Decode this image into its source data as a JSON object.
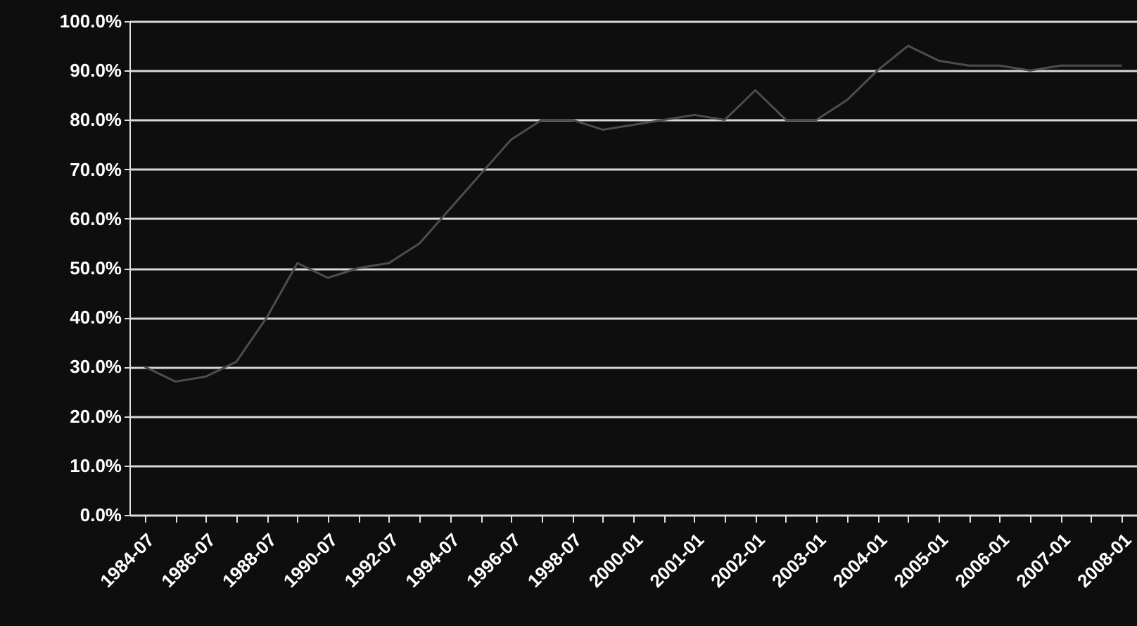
{
  "chart_data": {
    "type": "line",
    "categories": [
      "1984-07",
      null,
      "1986-07",
      null,
      "1988-07",
      null,
      "1990-07",
      null,
      "1992-07",
      null,
      "1994-07",
      null,
      "1996-07",
      null,
      "1998-07",
      null,
      "2000-01",
      null,
      "2001-01",
      null,
      "2002-01",
      null,
      "2003-01",
      null,
      "2004-01",
      null,
      "2005-01",
      null,
      "2006-01",
      null,
      "2007-01",
      null,
      "2008-01"
    ],
    "series": [
      {
        "color": "#4d4d4d",
        "values": [
          30,
          27,
          28,
          31,
          40,
          51,
          48,
          50,
          51,
          55,
          62,
          69,
          76,
          80,
          80,
          78,
          79,
          80,
          81,
          80,
          86,
          80,
          80,
          84,
          90,
          95,
          92,
          91,
          91,
          90,
          91,
          91,
          91
        ]
      }
    ],
    "ylim": [
      0,
      100
    ],
    "yticks": [
      {
        "value": 0,
        "label": "0.0%"
      },
      {
        "value": 10,
        "label": "10.0%"
      },
      {
        "value": 20,
        "label": "20.0%"
      },
      {
        "value": 30,
        "label": "30.0%"
      },
      {
        "value": 40,
        "label": "40.0%"
      },
      {
        "value": 50,
        "label": "50.0%"
      },
      {
        "value": 60,
        "label": "60.0%"
      },
      {
        "value": 70,
        "label": "70.0%"
      },
      {
        "value": 80,
        "label": "80.0%"
      },
      {
        "value": 90,
        "label": "90.0%"
      },
      {
        "value": 100,
        "label": "100.0%"
      }
    ],
    "grid": "y",
    "marker": "none",
    "line_style": "solid"
  }
}
